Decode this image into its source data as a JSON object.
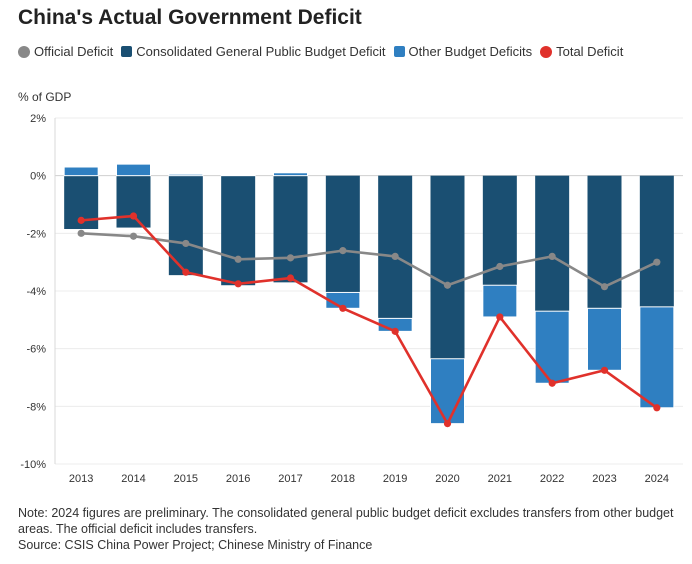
{
  "title": "China's Actual Government Deficit",
  "legend": [
    {
      "label": "Official Deficit",
      "color": "#888888",
      "shape": "circle"
    },
    {
      "label": "Consolidated General Public Budget Deficit",
      "color": "#1a4f72",
      "shape": "square"
    },
    {
      "label": "Other Budget Deficits",
      "color": "#2f7fc1",
      "shape": "square"
    },
    {
      "label": "Total Deficit",
      "color": "#e0312b",
      "shape": "circle"
    }
  ],
  "unit_label": "% of GDP",
  "notes": {
    "note": "Note: 2024 figures are preliminary. The consolidated general public budget deficit excludes transfers from other budget areas. The official deficit includes transfers.",
    "source": "Source: CSIS China Power Project; Chinese Ministry of Finance"
  },
  "chart_data": {
    "type": "bar",
    "title": "China's Actual Government Deficit",
    "ylabel": "% of GDP",
    "ylim": [
      -10,
      2
    ],
    "yticks": [
      2,
      0,
      -2,
      -4,
      -6,
      -8,
      -10
    ],
    "ytick_labels": [
      "2%",
      "0%",
      "-2%",
      "-4%",
      "-6%",
      "-8%",
      "-10%"
    ],
    "grid": true,
    "legend_position": "top",
    "categories": [
      "2013",
      "2014",
      "2015",
      "2016",
      "2017",
      "2018",
      "2019",
      "2020",
      "2021",
      "2022",
      "2023",
      "2024"
    ],
    "series": [
      {
        "name": "Consolidated General Public Budget Deficit",
        "kind": "bar",
        "color": "#1a4f72",
        "values": [
          -1.85,
          -1.8,
          -3.45,
          -3.8,
          -3.7,
          -4.05,
          -4.95,
          -6.35,
          -3.8,
          -4.7,
          -4.6,
          -4.55
        ]
      },
      {
        "name": "Other Budget Deficits",
        "kind": "bar",
        "color": "#2f7fc1",
        "values": [
          0.3,
          0.4,
          0.05,
          0.03,
          0.1,
          -0.55,
          -0.45,
          -2.25,
          -1.1,
          -2.5,
          -2.15,
          -3.5
        ]
      },
      {
        "name": "Official Deficit",
        "kind": "line",
        "color": "#888888",
        "values": [
          -2.0,
          -2.1,
          -2.35,
          -2.9,
          -2.85,
          -2.6,
          -2.8,
          -3.8,
          -3.15,
          -2.8,
          -3.85,
          -3.0
        ]
      },
      {
        "name": "Total Deficit",
        "kind": "line",
        "color": "#e0312b",
        "values": [
          -1.55,
          -1.4,
          -3.35,
          -3.75,
          -3.55,
          -4.6,
          -5.4,
          -8.6,
          -4.9,
          -7.2,
          -6.75,
          -8.05
        ]
      }
    ]
  }
}
